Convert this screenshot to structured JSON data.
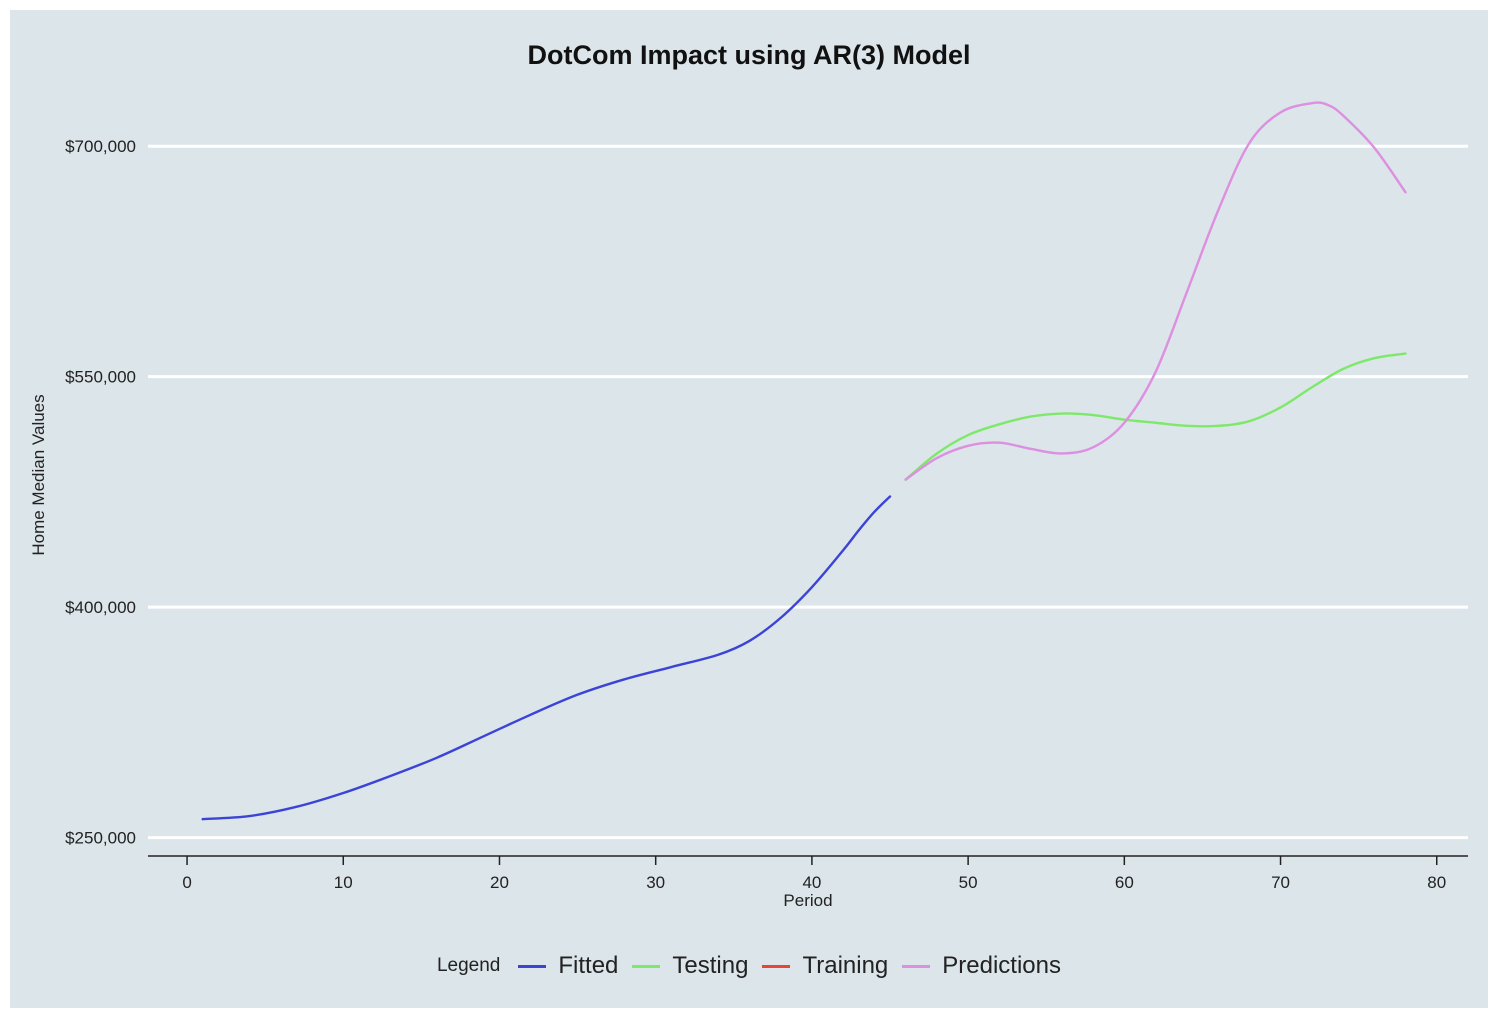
{
  "chart_data": {
    "type": "line",
    "title": "DotCom Impact using AR(3) Model",
    "xlabel": "Period",
    "ylabel": "Home Median Values",
    "xlim": [
      -2.5,
      82
    ],
    "ylim": [
      238000,
      747000
    ],
    "x_ticks": [
      0,
      10,
      20,
      30,
      40,
      50,
      60,
      70,
      80
    ],
    "y_ticks": [
      250000,
      400000,
      550000,
      700000
    ],
    "y_tick_labels": [
      "$250,000",
      "$400,000",
      "$550,000",
      "$700,000"
    ],
    "grid": "horizontal",
    "legend_title": "Legend",
    "legend_position": "bottom",
    "series": [
      {
        "name": "Fitted",
        "color": "#3b44d6",
        "x": [
          1,
          4,
          7,
          10,
          13,
          16,
          19,
          22,
          25,
          28,
          31,
          34,
          36,
          38,
          40,
          42,
          43,
          44,
          45
        ],
        "y": [
          262000,
          264000,
          270000,
          279000,
          290000,
          302000,
          316000,
          330000,
          343000,
          353000,
          361000,
          369000,
          378000,
          393000,
          413000,
          437000,
          450000,
          462000,
          472000
        ]
      },
      {
        "name": "Testing",
        "color": "#7ee86a",
        "x": [
          46,
          48,
          50,
          52,
          54,
          56,
          58,
          60,
          62,
          64,
          66,
          68,
          70,
          72,
          74,
          76,
          78
        ],
        "y": [
          483000,
          500000,
          512000,
          519000,
          524000,
          526000,
          525000,
          522000,
          520000,
          518000,
          518000,
          521000,
          530000,
          543000,
          555000,
          562000,
          565000
        ]
      },
      {
        "name": "Training",
        "color": "#e8443a",
        "x": [],
        "y": []
      },
      {
        "name": "Predictions",
        "color": "#dd8fe0",
        "x": [
          46,
          48,
          50,
          52,
          54,
          56,
          58,
          60,
          62,
          64,
          66,
          68,
          70,
          72,
          73,
          74,
          76,
          78
        ],
        "y": [
          483000,
          497000,
          505000,
          507000,
          503000,
          500000,
          504000,
          520000,
          553000,
          605000,
          658000,
          702000,
          722000,
          728000,
          727000,
          720000,
          699000,
          670000
        ]
      }
    ]
  }
}
